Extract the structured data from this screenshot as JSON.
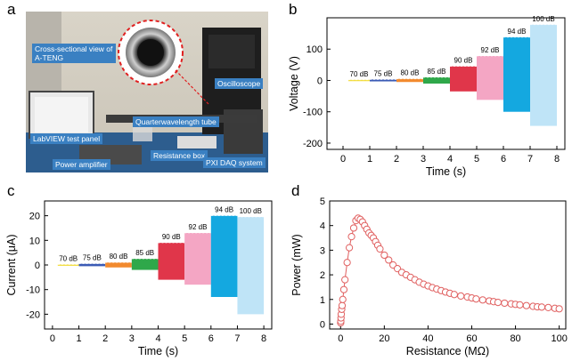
{
  "figure": {
    "panel_letters": {
      "a": "a",
      "b": "b",
      "c": "c",
      "d": "d"
    }
  },
  "photo": {
    "labels": {
      "cross_section": "Cross-sectional view of A-TENG",
      "oscilloscope": "Oscilloscope",
      "quarter_tube": "Quarterwavelength tube",
      "labview": "LabVIEW test panel",
      "resistance_box": "Resistance box",
      "power_amplifier": "Power amplifier",
      "pxi": "PXI DAQ system"
    },
    "colors": {
      "callout": "#3a80c2",
      "dashed_circle": "#e02020"
    }
  },
  "chart_data": [
    {
      "id": "b",
      "type": "area",
      "xlabel": "Time (s)",
      "ylabel": "Voltage (V)",
      "xlim": [
        -0.6,
        8.3
      ],
      "ylim": [
        -220,
        200
      ],
      "xticks": [
        0,
        1,
        2,
        3,
        4,
        5,
        6,
        7,
        8
      ],
      "yticks": [
        -200,
        -100,
        0,
        100
      ],
      "segments": [
        {
          "label": "70 dB",
          "x": [
            0.2,
            1.0
          ],
          "ymax": 2,
          "ymin": -2,
          "color": "#f2dc3c"
        },
        {
          "label": "75 dB",
          "x": [
            1.0,
            2.0
          ],
          "ymax": 3,
          "ymin": -3,
          "color": "#3b5bb5"
        },
        {
          "label": "80 dB",
          "x": [
            2.0,
            3.0
          ],
          "ymax": 5,
          "ymin": -5,
          "color": "#f28a2e"
        },
        {
          "label": "85 dB",
          "x": [
            3.0,
            4.0
          ],
          "ymax": 10,
          "ymin": -10,
          "color": "#2fa84a"
        },
        {
          "label": "90 dB",
          "x": [
            4.0,
            5.0
          ],
          "ymax": 45,
          "ymin": -35,
          "color": "#e0364a"
        },
        {
          "label": "92 dB",
          "x": [
            5.0,
            6.0
          ],
          "ymax": 78,
          "ymin": -62,
          "color": "#f4a6c4"
        },
        {
          "label": "94 dB",
          "x": [
            6.0,
            7.0
          ],
          "ymax": 138,
          "ymin": -100,
          "color": "#14a8e0"
        },
        {
          "label": "100 dB",
          "x": [
            7.0,
            8.0
          ],
          "ymax": 178,
          "ymin": -145,
          "color": "#bfe4f7"
        }
      ]
    },
    {
      "id": "c",
      "type": "area",
      "xlabel": "Time (s)",
      "ylabel": "Current (μA)",
      "xlim": [
        -0.3,
        8.3
      ],
      "ylim": [
        -26,
        26
      ],
      "xticks": [
        0,
        1,
        2,
        3,
        4,
        5,
        6,
        7,
        8
      ],
      "yticks": [
        -20,
        -10,
        0,
        10,
        20
      ],
      "segments": [
        {
          "label": "70 dB",
          "x": [
            0.2,
            1.0
          ],
          "ymax": 0.2,
          "ymin": -0.2,
          "color": "#f2dc3c"
        },
        {
          "label": "75 dB",
          "x": [
            1.0,
            2.0
          ],
          "ymax": 0.5,
          "ymin": -0.5,
          "color": "#3b5bb5"
        },
        {
          "label": "80 dB",
          "x": [
            2.0,
            3.0
          ],
          "ymax": 1.0,
          "ymin": -1.0,
          "color": "#f28a2e"
        },
        {
          "label": "85 dB",
          "x": [
            3.0,
            4.0
          ],
          "ymax": 2.5,
          "ymin": -2.0,
          "color": "#2fa84a"
        },
        {
          "label": "90 dB",
          "x": [
            4.0,
            5.0
          ],
          "ymax": 9,
          "ymin": -6,
          "color": "#e0364a"
        },
        {
          "label": "92 dB",
          "x": [
            5.0,
            6.0
          ],
          "ymax": 13,
          "ymin": -8,
          "color": "#f4a6c4"
        },
        {
          "label": "94 dB",
          "x": [
            6.0,
            7.0
          ],
          "ymax": 20,
          "ymin": -13,
          "color": "#14a8e0"
        },
        {
          "label": "100 dB",
          "x": [
            7.0,
            8.0
          ],
          "ymax": 19.5,
          "ymin": -20,
          "color": "#bfe4f7"
        }
      ]
    },
    {
      "id": "d",
      "type": "scatter",
      "xlabel": "Resistance (MΩ)",
      "ylabel": "Power (mW)",
      "xlim": [
        -5,
        103
      ],
      "ylim": [
        -0.2,
        5
      ],
      "xticks": [
        0,
        20,
        40,
        60,
        80,
        100
      ],
      "yticks": [
        0,
        1,
        2,
        3,
        4,
        5
      ],
      "color": "#e06060",
      "x": [
        0.05,
        0.1,
        0.2,
        0.3,
        0.5,
        0.7,
        1,
        1.5,
        2,
        3,
        4,
        5,
        6,
        7,
        8,
        9,
        10,
        11,
        12,
        13,
        14,
        15,
        16,
        17,
        18,
        20,
        22,
        24,
        26,
        28,
        30,
        32,
        34,
        36,
        38,
        40,
        42,
        44,
        46,
        48,
        50,
        52,
        55,
        58,
        60,
        62,
        65,
        68,
        70,
        72,
        75,
        78,
        80,
        82,
        85,
        88,
        90,
        92,
        95,
        98,
        100
      ],
      "y": [
        0.05,
        0.12,
        0.25,
        0.4,
        0.6,
        0.75,
        1.0,
        1.4,
        1.8,
        2.5,
        3.1,
        3.55,
        3.9,
        4.2,
        4.3,
        4.25,
        4.15,
        4.0,
        3.85,
        3.7,
        3.6,
        3.5,
        3.35,
        3.2,
        3.05,
        2.8,
        2.6,
        2.4,
        2.25,
        2.1,
        2.0,
        1.9,
        1.8,
        1.7,
        1.62,
        1.55,
        1.48,
        1.42,
        1.36,
        1.3,
        1.25,
        1.2,
        1.14,
        1.1,
        1.06,
        1.02,
        0.98,
        0.94,
        0.91,
        0.88,
        0.85,
        0.82,
        0.8,
        0.78,
        0.75,
        0.72,
        0.7,
        0.69,
        0.67,
        0.64,
        0.62
      ]
    }
  ]
}
